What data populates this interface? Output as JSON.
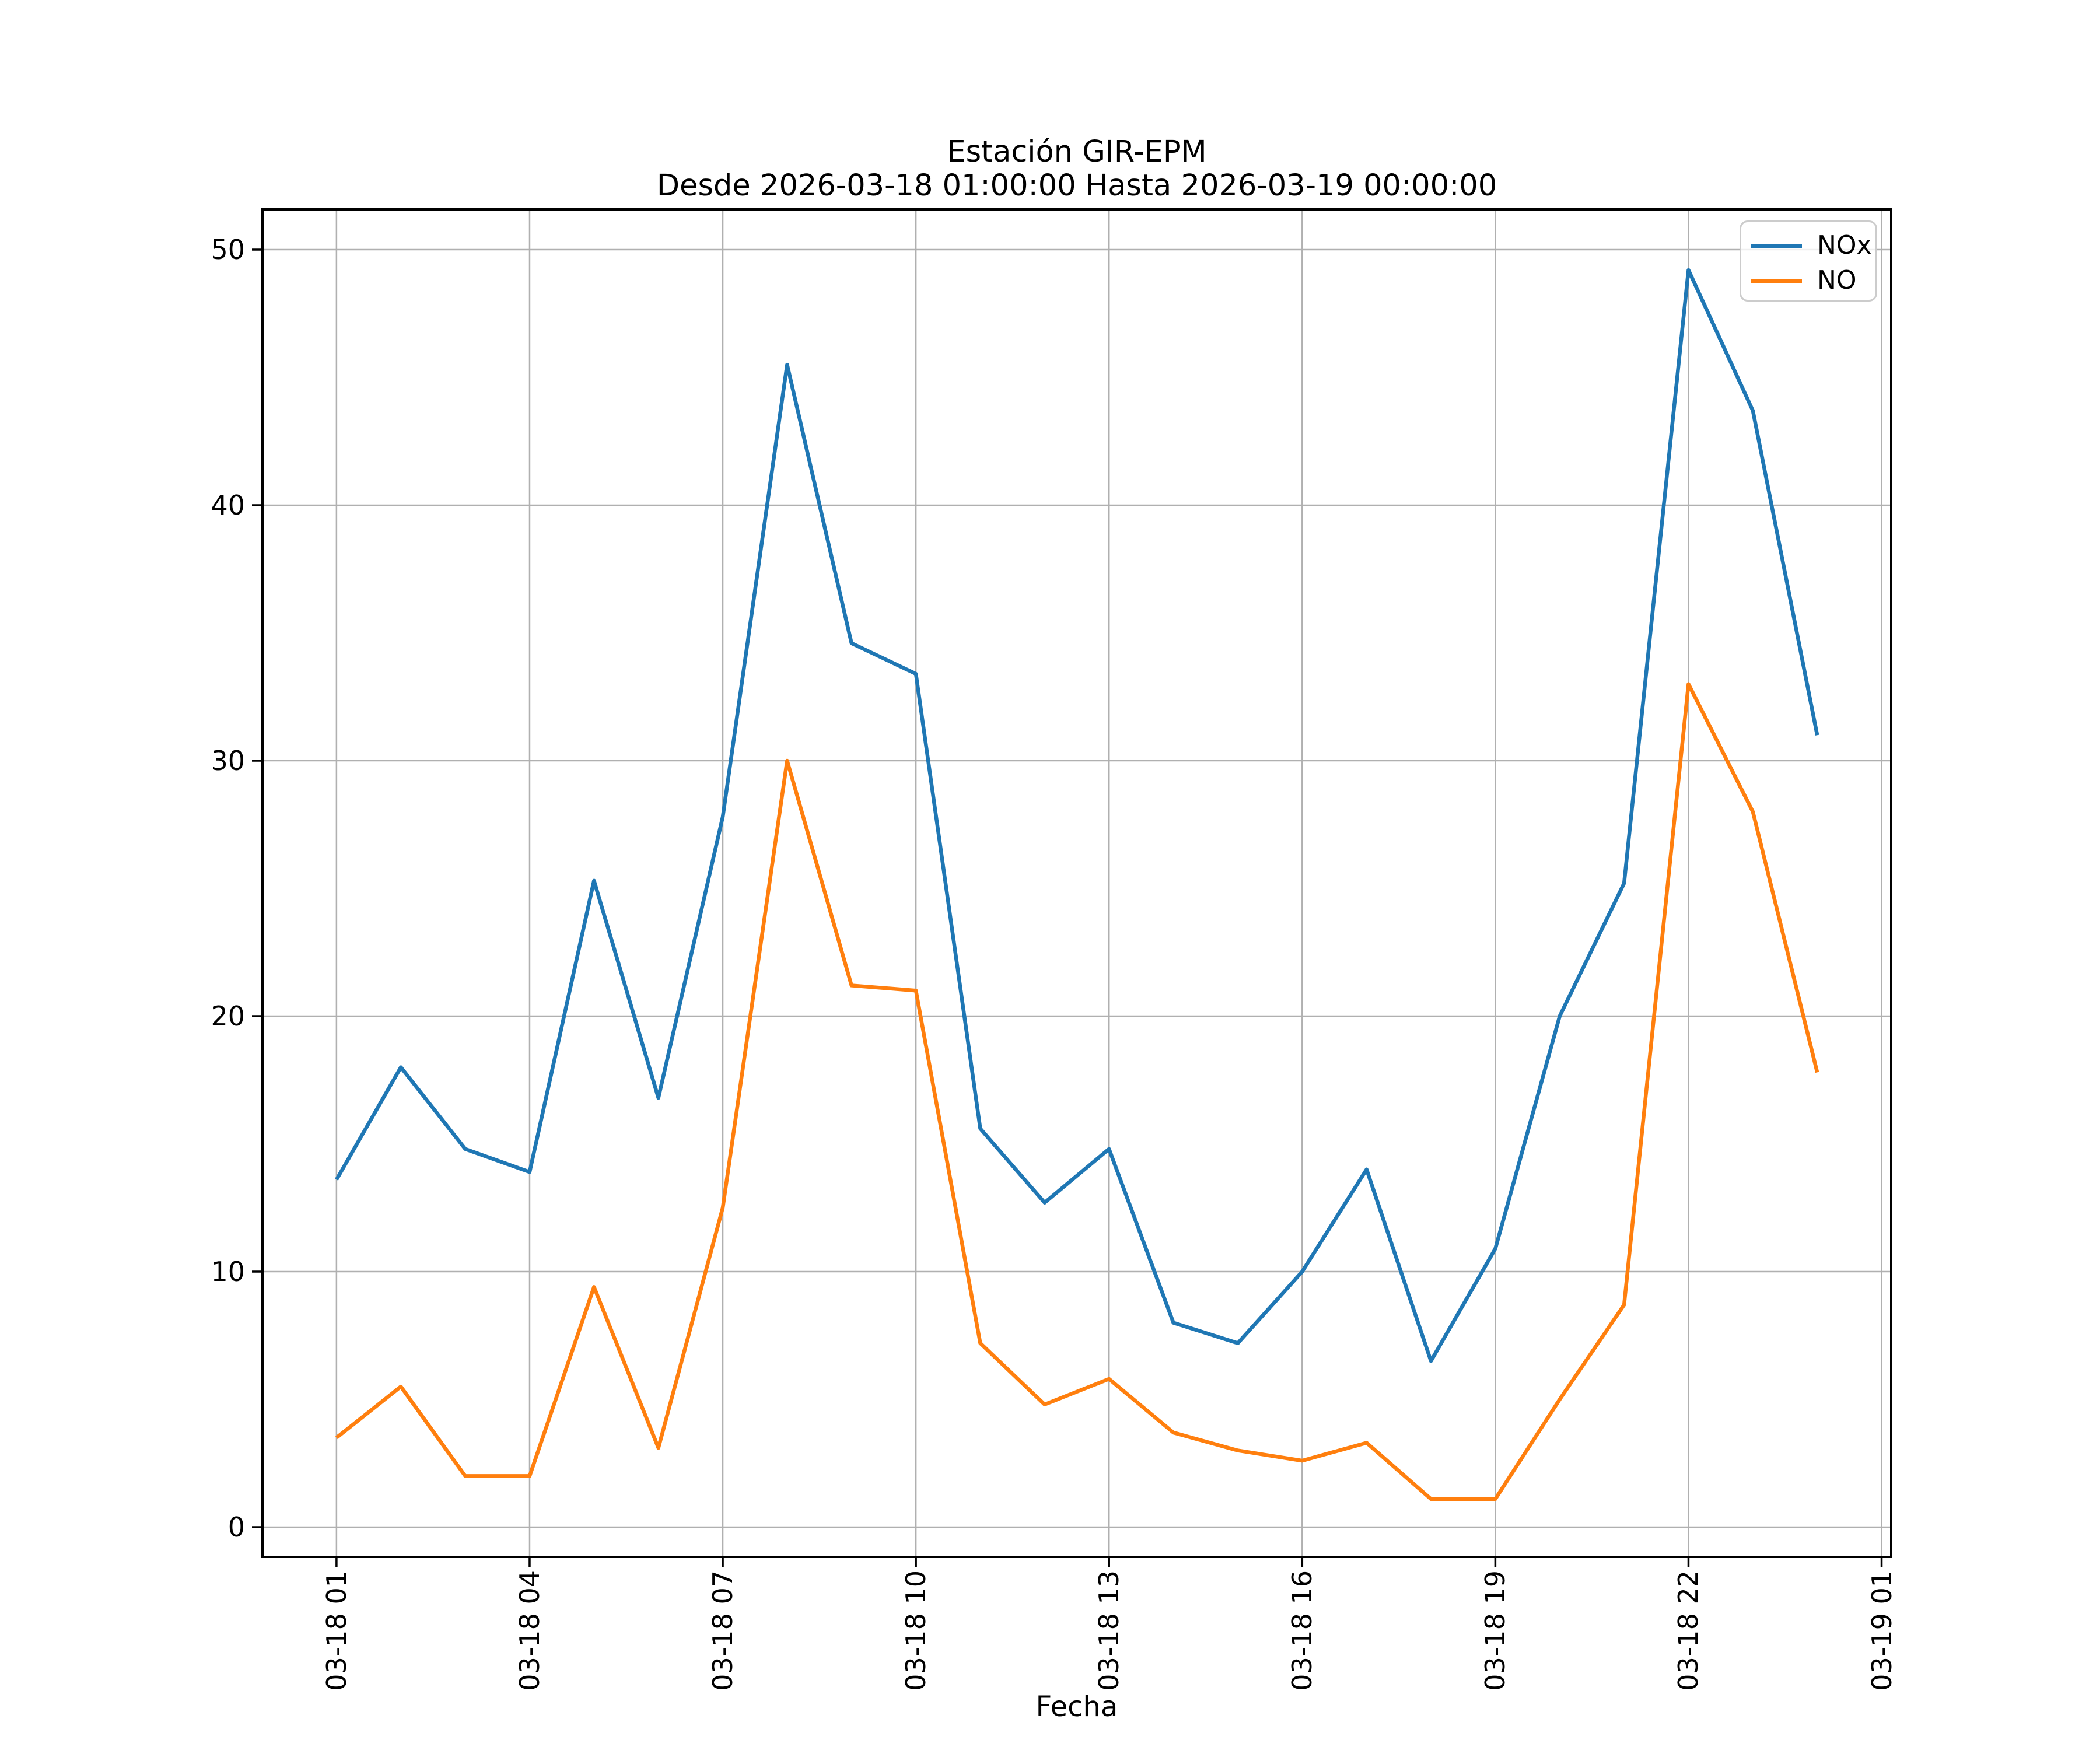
{
  "title": {
    "line1": "Estación GIR-EPM",
    "line2": "Desde 2026-03-18 01:00:00 Hasta 2026-03-19 00:00:00"
  },
  "axes": {
    "xlabel": "Fecha",
    "x_tick_labels": [
      "03-18 01",
      "03-18 04",
      "03-18 07",
      "03-18 10",
      "03-18 13",
      "03-18 16",
      "03-18 19",
      "03-18 22",
      "03-19 01"
    ],
    "x_tick_hours": [
      1,
      4,
      7,
      10,
      13,
      16,
      19,
      22,
      25
    ],
    "y_tick_labels": [
      "0",
      "10",
      "20",
      "30",
      "40",
      "50"
    ],
    "y_tick_values": [
      0,
      10,
      20,
      30,
      40,
      50
    ],
    "grid_color": "#b0b0b0",
    "spine_color": "#000000"
  },
  "legend": {
    "entries": [
      {
        "label": "NOx",
        "color": "#1f77b4"
      },
      {
        "label": "NO",
        "color": "#ff7f0e"
      }
    ]
  },
  "chart_data": {
    "type": "line",
    "title": "Estación GIR-EPM",
    "subtitle": "Desde 2026-03-18 01:00:00 Hasta 2026-03-19 00:00:00",
    "xlabel": "Fecha",
    "ylabel": "",
    "grid": true,
    "legend_position": "upper right",
    "ylim": [
      -1.3,
      51.6
    ],
    "xlim_hours": [
      -0.15,
      25.15
    ],
    "x_hours": [
      1,
      2,
      3,
      4,
      5,
      6,
      7,
      8,
      9,
      10,
      11,
      12,
      13,
      14,
      15,
      16,
      17,
      18,
      19,
      20,
      21,
      22,
      23,
      24
    ],
    "x_timestamps": [
      "2026-03-18 01:00:00",
      "2026-03-18 02:00:00",
      "2026-03-18 03:00:00",
      "2026-03-18 04:00:00",
      "2026-03-18 05:00:00",
      "2026-03-18 06:00:00",
      "2026-03-18 07:00:00",
      "2026-03-18 08:00:00",
      "2026-03-18 09:00:00",
      "2026-03-18 10:00:00",
      "2026-03-18 11:00:00",
      "2026-03-18 12:00:00",
      "2026-03-18 13:00:00",
      "2026-03-18 14:00:00",
      "2026-03-18 15:00:00",
      "2026-03-18 16:00:00",
      "2026-03-18 17:00:00",
      "2026-03-18 18:00:00",
      "2026-03-18 19:00:00",
      "2026-03-18 20:00:00",
      "2026-03-18 21:00:00",
      "2026-03-18 22:00:00",
      "2026-03-18 23:00:00",
      "2026-03-19 00:00:00"
    ],
    "series": [
      {
        "name": "NOx",
        "color": "#1f77b4",
        "values": [
          13.6,
          18.0,
          14.8,
          13.9,
          25.3,
          16.8,
          27.8,
          45.5,
          34.6,
          33.4,
          15.6,
          12.7,
          14.8,
          8.0,
          7.2,
          10.0,
          14.0,
          6.5,
          10.9,
          20.0,
          25.2,
          49.2,
          43.7,
          31.0
        ]
      },
      {
        "name": "NO",
        "color": "#ff7f0e",
        "values": [
          3.5,
          5.5,
          2.0,
          2.0,
          9.4,
          3.1,
          12.5,
          30.0,
          21.2,
          21.0,
          7.2,
          4.8,
          5.8,
          3.7,
          3.0,
          2.6,
          3.3,
          1.1,
          1.1,
          5.0,
          8.7,
          33.0,
          28.0,
          17.8
        ]
      }
    ]
  }
}
